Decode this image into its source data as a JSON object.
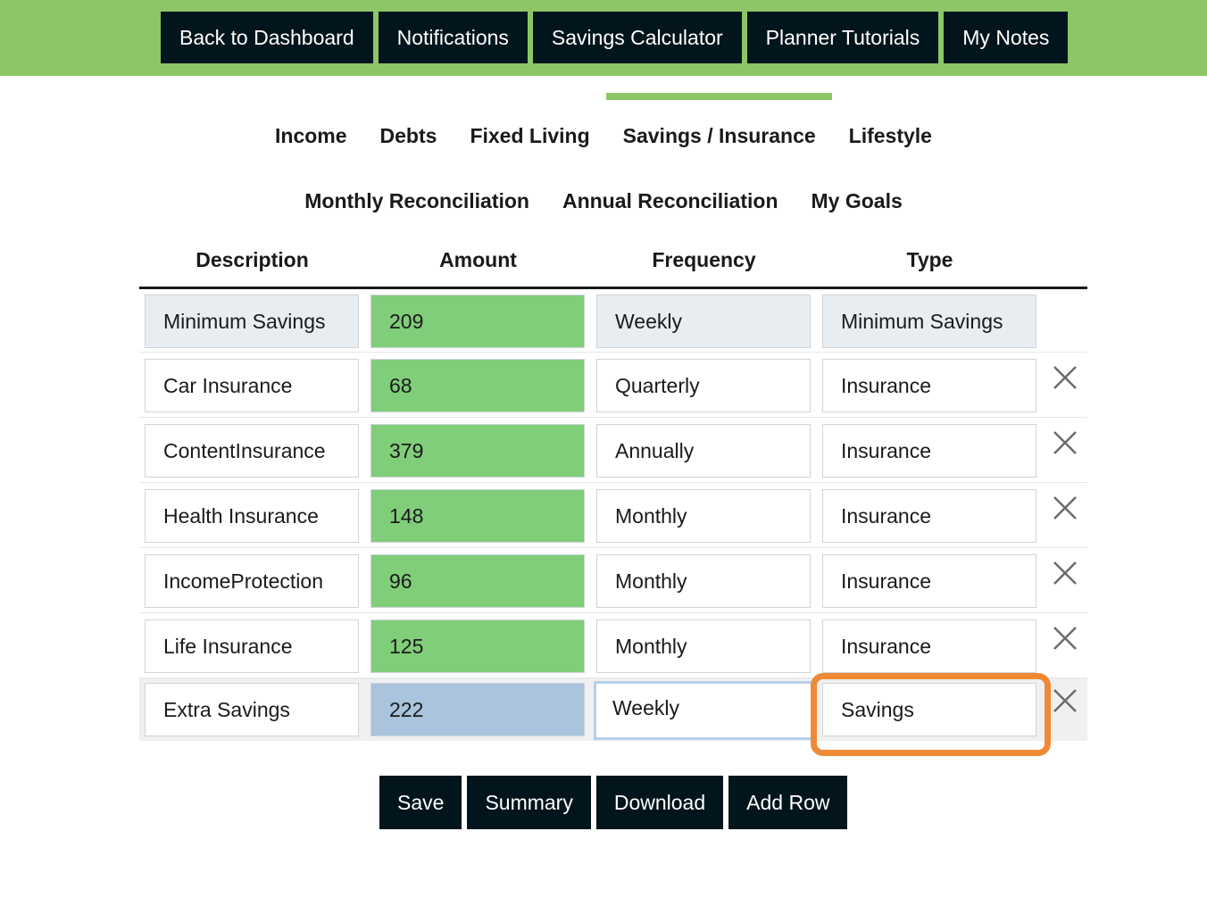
{
  "topnav": [
    {
      "label": "Back to Dashboard"
    },
    {
      "label": "Notifications"
    },
    {
      "label": "Savings Calculator"
    },
    {
      "label": "Planner Tutorials"
    },
    {
      "label": "My Notes"
    }
  ],
  "tabs_row1": [
    {
      "label": "Income"
    },
    {
      "label": "Debts"
    },
    {
      "label": "Fixed Living"
    },
    {
      "label": "Savings / Insurance",
      "active": true
    },
    {
      "label": "Lifestyle"
    }
  ],
  "tabs_row2": [
    {
      "label": "Monthly Reconciliation"
    },
    {
      "label": "Annual Reconciliation"
    },
    {
      "label": "My Goals"
    }
  ],
  "table": {
    "headers": [
      "Description",
      "Amount",
      "Frequency",
      "Type"
    ],
    "rows": [
      {
        "description": "Minimum Savings",
        "amount": "209",
        "frequency": "Weekly",
        "type": "Minimum Savings"
      },
      {
        "description": "Car Insurance",
        "amount": "68",
        "frequency": "Quarterly",
        "type": "Insurance"
      },
      {
        "description": "ContentInsurance",
        "amount": "379",
        "frequency": "Annually",
        "type": "Insurance"
      },
      {
        "description": "Health Insurance",
        "amount": "148",
        "frequency": "Monthly",
        "type": "Insurance"
      },
      {
        "description": "IncomeProtection",
        "amount": "96",
        "frequency": "Monthly",
        "type": "Insurance"
      },
      {
        "description": "Life Insurance",
        "amount": "125",
        "frequency": "Monthly",
        "type": "Insurance"
      },
      {
        "description": "Extra Savings",
        "amount": "222",
        "frequency": "Weekly",
        "type": "Savings"
      }
    ]
  },
  "buttons": {
    "save": "Save",
    "summary": "Summary",
    "download": "Download",
    "add_row": "Add Row"
  },
  "colors": {
    "brand_green": "#8cc666",
    "amount_green": "#80cd7a",
    "highlight_orange": "#ee8a36",
    "dark_button": "#02151c"
  },
  "icons": {
    "delete": "close-icon"
  }
}
